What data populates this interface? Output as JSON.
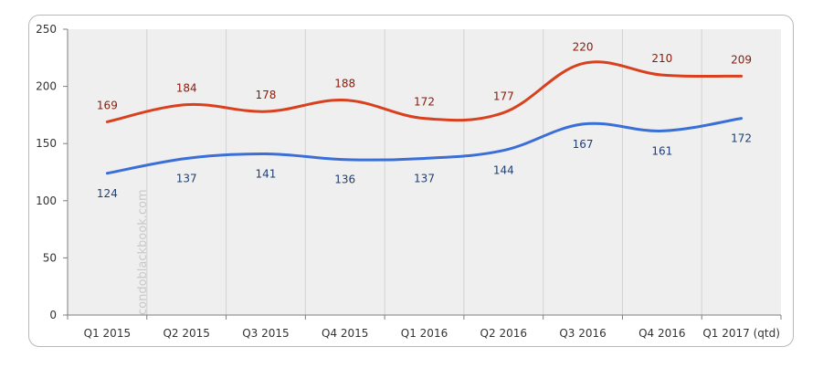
{
  "chart_data": {
    "type": "line",
    "title": "",
    "xlabel": "",
    "ylabel": "",
    "categories": [
      "Q1 2015",
      "Q2 2015",
      "Q3 2015",
      "Q4 2015",
      "Q1 2016",
      "Q2 2016",
      "Q3 2016",
      "Q4 2016",
      "Q1 2017 (qtd)"
    ],
    "ylim": [
      0,
      250
    ],
    "yticks": [
      0,
      50,
      100,
      150,
      200,
      250
    ],
    "grid": "vertical",
    "legend": "none",
    "series": [
      {
        "color": "#d9411e",
        "label_color": "#8b1a0a",
        "values": [
          169,
          184,
          178,
          188,
          172,
          177,
          220,
          210,
          209
        ]
      },
      {
        "color": "#3a6fd8",
        "label_color": "#1f3f74",
        "values": [
          124,
          137,
          141,
          136,
          137,
          144,
          167,
          161,
          172
        ]
      }
    ],
    "watermark": "condoblackbook.com",
    "plot_background": "#efefef"
  }
}
